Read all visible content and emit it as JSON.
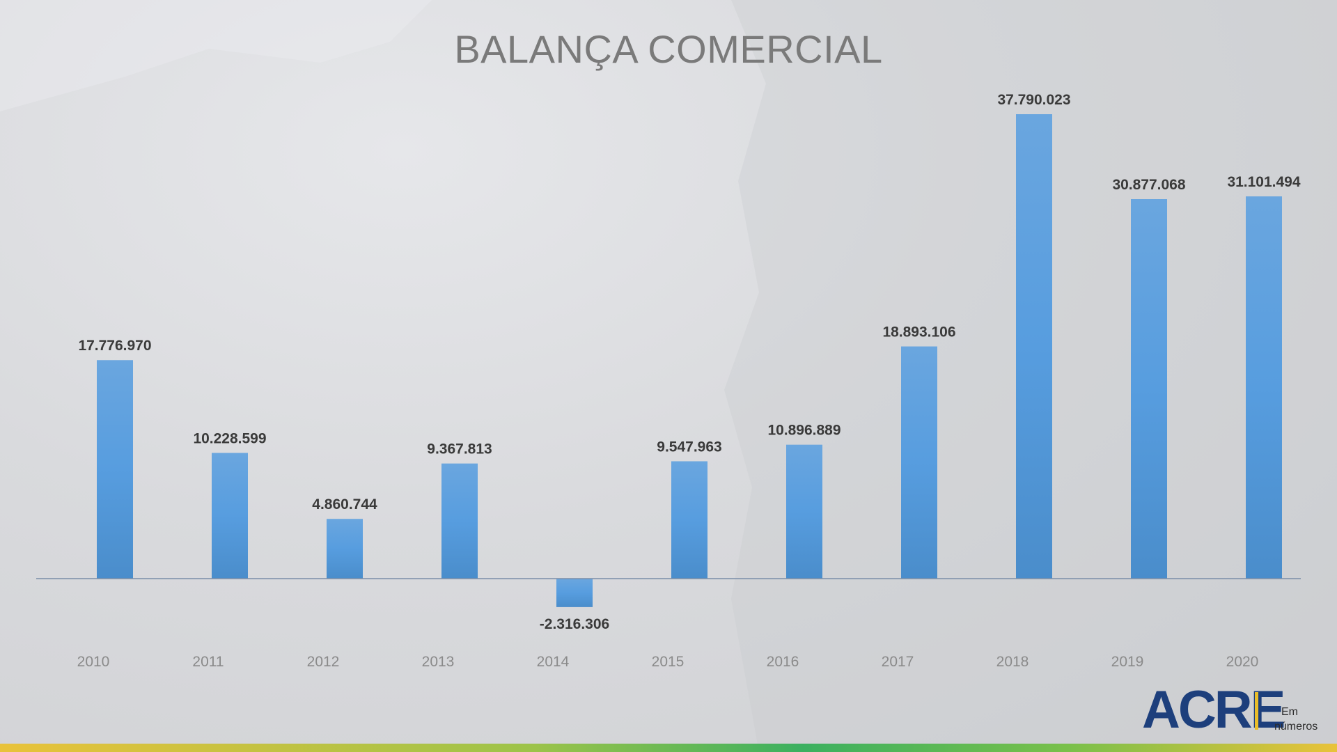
{
  "chart_data": {
    "type": "bar",
    "title": "BALANÇA COMERCIAL",
    "categories": [
      "2010",
      "2011",
      "2012",
      "2013",
      "2014",
      "2015",
      "2016",
      "2017",
      "2018",
      "2019",
      "2020"
    ],
    "values": [
      17776970,
      10228599,
      4860744,
      9367813,
      -2316306,
      9547963,
      10896889,
      18893106,
      37790023,
      30877068,
      31101494
    ],
    "value_labels": [
      "17.776.970",
      "10.228.599",
      "4.860.744",
      "9.367.813",
      "-2.316.306",
      "9.547.963",
      "10.896.889",
      "18.893.106",
      "37.790.023",
      "30.877.068",
      "31.101.494"
    ],
    "xlabel": "",
    "ylabel": "",
    "ylim": [
      -2316306,
      37790023
    ],
    "grid": false,
    "legend": "none",
    "bar_color": "#5a9fdc",
    "axis_color": "#7a8ea8"
  },
  "logo": {
    "main": "ACRE",
    "sub_1": "Em",
    "sub_2": "números",
    "color": "#1d3f7c",
    "accent": "#e9bd2a"
  }
}
